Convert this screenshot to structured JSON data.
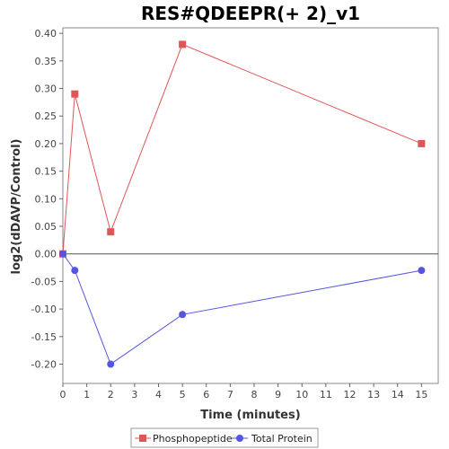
{
  "chart_data": {
    "type": "line",
    "title": "RES#QDEEPR(+ 2)_v1",
    "xlabel": "Time (minutes)",
    "ylabel": "log2(dDAVP/Control)",
    "x_ticks": [
      0,
      1,
      2,
      3,
      4,
      5,
      6,
      7,
      8,
      9,
      10,
      11,
      12,
      13,
      14,
      15
    ],
    "y_ticks": [
      -0.2,
      -0.15,
      -0.1,
      -0.05,
      0.0,
      0.05,
      0.1,
      0.15,
      0.2,
      0.25,
      0.3,
      0.35,
      0.4
    ],
    "xlim": [
      0,
      15.7
    ],
    "ylim": [
      -0.235,
      0.41
    ],
    "grid": false,
    "legend_position": "bottom",
    "series": [
      {
        "name": "Phosphopeptide",
        "color": "#e05555",
        "marker": "square",
        "points": [
          [
            0,
            0.0
          ],
          [
            0.5,
            0.29
          ],
          [
            2,
            0.04
          ],
          [
            5,
            0.38
          ],
          [
            15,
            0.2
          ]
        ]
      },
      {
        "name": "Total Protein",
        "color": "#5555e0",
        "marker": "circle",
        "points": [
          [
            0,
            0.0
          ],
          [
            0.5,
            -0.03
          ],
          [
            2,
            -0.2
          ],
          [
            5,
            -0.11
          ],
          [
            15,
            -0.03
          ]
        ]
      }
    ]
  }
}
